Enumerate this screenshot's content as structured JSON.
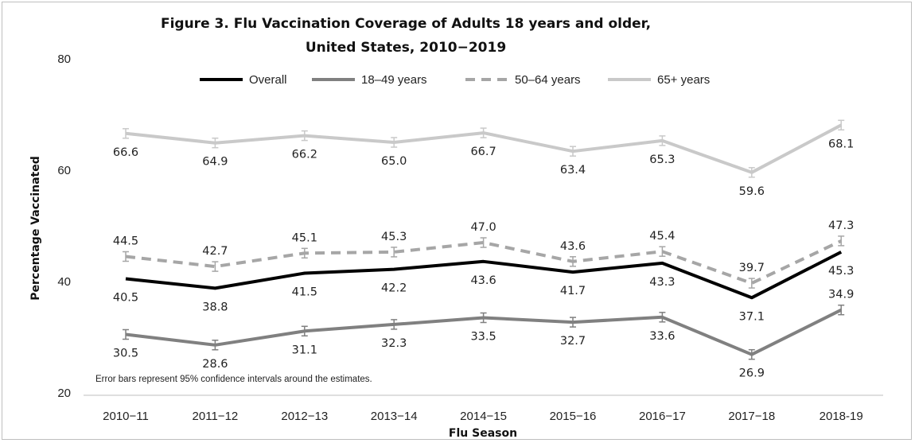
{
  "chart_data": {
    "type": "line",
    "title_lines": [
      "Figure 3. Flu Vaccination Coverage of Adults 18 years and older,",
      "United States, 2010−2019"
    ],
    "xlabel": "Flu Season",
    "ylabel": "Percentage Vaccinated",
    "ylim": [
      20,
      80
    ],
    "yticks": [
      20,
      40,
      60,
      80
    ],
    "grid": false,
    "legend_position": "top",
    "categories": [
      "2010−11",
      "2011−12",
      "2012−13",
      "2013−14",
      "2014−15",
      "2015−16",
      "2016−17",
      "2017−18",
      "2018-19"
    ],
    "series": [
      {
        "name": "Overall",
        "color": "#000000",
        "dash": "solid",
        "error_bars": false,
        "values": [
          40.5,
          38.8,
          41.5,
          42.2,
          43.6,
          41.7,
          43.3,
          37.1,
          45.3
        ],
        "label_position": [
          "below",
          "below",
          "below",
          "below",
          "below",
          "below",
          "below",
          "below",
          "below"
        ]
      },
      {
        "name": "18–49 years",
        "color": "#808080",
        "dash": "solid",
        "error_bars": true,
        "values": [
          30.5,
          28.6,
          31.1,
          32.3,
          33.5,
          32.7,
          33.6,
          26.9,
          34.9
        ],
        "label_position": [
          "below",
          "below",
          "below",
          "below",
          "below",
          "below",
          "below",
          "below",
          "above"
        ]
      },
      {
        "name": "50–64 years",
        "color": "#a6a6a6",
        "dash": "dashed",
        "error_bars": true,
        "values": [
          44.5,
          42.7,
          45.1,
          45.3,
          47.0,
          43.6,
          45.4,
          39.7,
          47.3
        ],
        "label_position": [
          "above",
          "above",
          "above",
          "above",
          "above",
          "above",
          "above",
          "above",
          "above"
        ]
      },
      {
        "name": "65+ years",
        "color": "#c9c9c9",
        "dash": "solid",
        "error_bars": true,
        "values": [
          66.6,
          64.9,
          66.2,
          65.0,
          66.7,
          63.4,
          65.3,
          59.6,
          68.1
        ],
        "label_position": [
          "below",
          "below",
          "below",
          "below",
          "below",
          "below",
          "below",
          "below",
          "below"
        ]
      }
    ],
    "note": "Error bars represent 95% confidence  intervals around  the  estimates."
  }
}
